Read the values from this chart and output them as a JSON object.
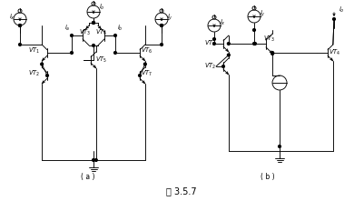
{
  "title": "图 3.5.7",
  "bg_color": "#ffffff",
  "fig_width": 4.01,
  "fig_height": 2.21,
  "dpi": 100
}
